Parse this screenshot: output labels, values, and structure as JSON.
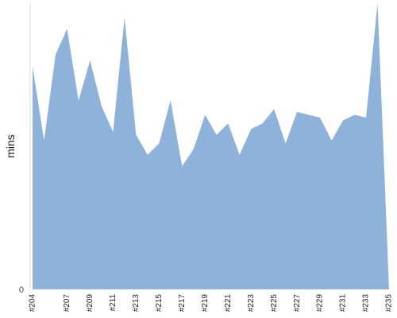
{
  "chart_data": {
    "type": "area",
    "xlabel": "",
    "ylabel": "mins",
    "y_tick_labels": [
      "0"
    ],
    "grid": false,
    "colors": {
      "area": "#8fb2db",
      "axis": "#d8d8d8"
    },
    "categories": [
      "#204",
      "#205",
      "#206",
      "#207",
      "#208",
      "#209",
      "#210",
      "#211",
      "#212",
      "#213",
      "#214",
      "#215",
      "#216",
      "#217",
      "#218",
      "#219",
      "#220",
      "#221",
      "#222",
      "#223",
      "#224",
      "#225",
      "#226",
      "#227",
      "#228",
      "#229",
      "#230",
      "#231",
      "#232",
      "#233",
      "#234",
      "#235"
    ],
    "x_tick_labels": [
      "#204",
      "#207",
      "#209",
      "#211",
      "#213",
      "#215",
      "#217",
      "#219",
      "#221",
      "#223",
      "#225",
      "#227",
      "#229",
      "#231",
      "#233",
      "#235"
    ],
    "values": [
      78,
      52,
      82,
      91,
      66,
      80,
      64,
      55,
      95,
      54,
      47,
      51,
      66,
      43,
      49,
      61,
      54,
      58,
      47,
      56,
      58,
      63,
      51,
      62,
      61,
      60,
      52,
      59,
      61,
      60,
      100,
      0
    ],
    "ylim": [
      0,
      100
    ]
  }
}
